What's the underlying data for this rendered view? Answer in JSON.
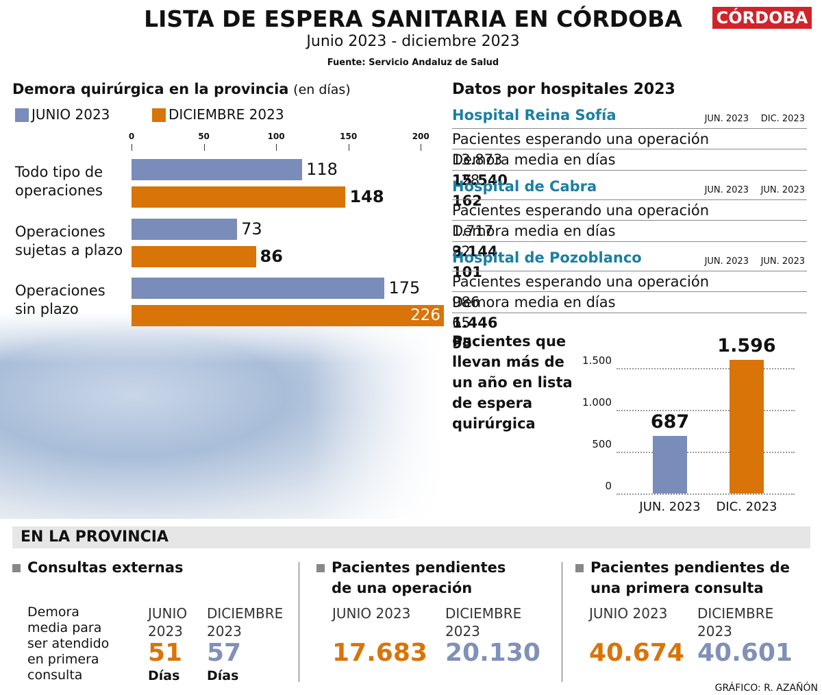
{
  "header": {
    "title": "LISTA DE ESPERA SANITARIA EN CÓRDOBA",
    "subtitle": "Junio 2023 - diciembre 2023",
    "source": "Fuente: Servicio Andaluz de Salud",
    "logo": "CÓRDOBA"
  },
  "chart_data": [
    {
      "type": "hbar",
      "title": "Demora quirúrgica en la provincia",
      "title_note": "(en días)",
      "categories": [
        "Todo tipo de operaciones",
        "Operaciones sujetas a plazo",
        "Operaciones sin plazo"
      ],
      "series": [
        {
          "name": "JUNIO 2023",
          "color": "#7a8cb9",
          "values": [
            118,
            73,
            175
          ]
        },
        {
          "name": "DICIEMBRE 2023",
          "color": "#d97408",
          "values": [
            148,
            86,
            226
          ]
        }
      ],
      "xlim": [
        0,
        216
      ],
      "xticks": [
        0,
        50,
        100,
        150,
        200
      ]
    },
    {
      "type": "bar",
      "title": "Pacientes que llevan más de un año en lista de espera quirúrgica",
      "categories": [
        "JUN. 2023",
        "DIC. 2023"
      ],
      "values": [
        687,
        1596
      ],
      "value_labels": [
        "687",
        "1.596"
      ],
      "colors": [
        "#7a8cb9",
        "#d97408"
      ],
      "ylim": [
        0,
        1600
      ],
      "yticks": [
        0,
        500,
        {
          "value": 1000,
          "label": "1.000"
        },
        {
          "value": 1500,
          "label": "1.500"
        }
      ],
      "grid": true
    }
  ],
  "hospitals": {
    "title": "Datos por hospitales 2023",
    "items": [
      {
        "name": "Hospital Reina Sofía",
        "columns": [
          "JUN. 2023",
          "DIC. 2023"
        ],
        "rows": [
          {
            "label": "Pacientes esperando una operación",
            "values": [
              "13.873",
              "15.540"
            ]
          },
          {
            "label": "Demora media en días",
            "values": [
              "128",
              "162"
            ]
          }
        ]
      },
      {
        "name": "Hospital de Cabra",
        "columns": [
          "JUN. 2023",
          "JUN. 2023"
        ],
        "rows": [
          {
            "label": "Pacientes esperando una operación",
            "values": [
              "1.717",
              "3.144"
            ]
          },
          {
            "label": "Demora media en días",
            "values": [
              "92",
              "101"
            ]
          }
        ]
      },
      {
        "name": "Hospital de Pozoblanco",
        "columns": [
          "JUN. 2023",
          "JUN. 2023"
        ],
        "rows": [
          {
            "label": "Pacientes esperando una operación",
            "values": [
              "986",
              "1.446"
            ]
          },
          {
            "label": "Demora media en días",
            "values": [
              "65",
              "95"
            ]
          }
        ]
      }
    ]
  },
  "province": {
    "title": "EN LA PROVINCIA",
    "sections": [
      {
        "title": "Consultas externas",
        "description": "Demora media para ser atendido en primera consulta",
        "columns": [
          {
            "label": "JUNIO 2023",
            "value": "51",
            "unit": "Días"
          },
          {
            "label": "DICIEMBRE 2023",
            "value": "57",
            "unit": "Días"
          }
        ]
      },
      {
        "title": "Pacientes pendientes de una operación",
        "columns": [
          {
            "label": "JUNIO 2023",
            "value": "17.683"
          },
          {
            "label": "DICIEMBRE 2023",
            "value": "20.130"
          }
        ]
      },
      {
        "title": "Pacientes pendientes de una primera consulta",
        "columns": [
          {
            "label": "JUNIO 2023",
            "value": "40.674"
          },
          {
            "label": "DICIEMBRE 2023",
            "value": "40.601"
          }
        ]
      }
    ]
  },
  "credit": "GRÁFICO: R. AZAÑÓN"
}
